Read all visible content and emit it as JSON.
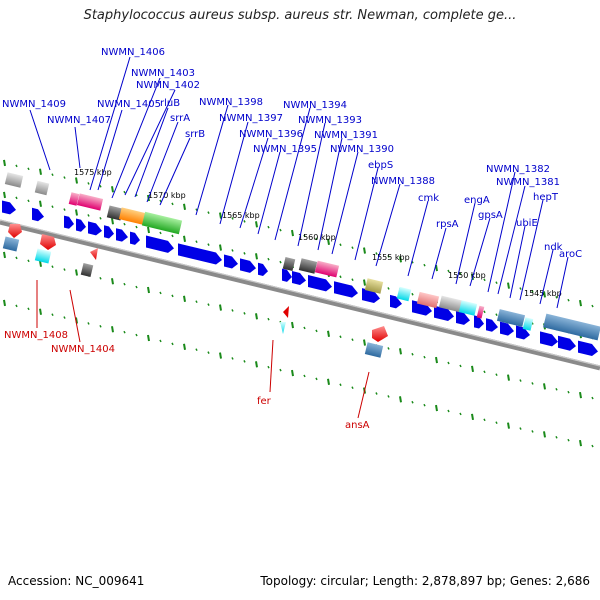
{
  "title": "Staphylococcus aureus subsp. aureus str. Newman, complete ge...",
  "footer": {
    "accession": "Accession: NC_009641",
    "topology": "Topology: circular; Length: 2,878,897 bp; Genes: 2,686"
  },
  "colors": {
    "forward_label": "#0000cc",
    "reverse_label": "#cc0000",
    "backbone": "#8a8a8a",
    "arrow": "#0000e6",
    "tick": "#1a8a1a"
  },
  "kbp_marks": [
    {
      "label": "1575 kbp",
      "pos": 1575
    },
    {
      "label": "1570 kbp",
      "pos": 1570
    },
    {
      "label": "1565 kbp",
      "pos": 1565
    },
    {
      "label": "1560 kbp",
      "pos": 1560
    },
    {
      "label": "1555 kbp",
      "pos": 1555
    },
    {
      "label": "1550 kbp",
      "pos": 1550
    },
    {
      "label": "1545 kbp",
      "pos": 1545
    }
  ],
  "forward_genes": [
    "NWMN_1409",
    "NWMN_1407",
    "NWMN_1406",
    "NWMN_1405",
    "NWMN_1403",
    "NWMN_1402",
    "rluB",
    "srrA",
    "srrB",
    "NWMN_1398",
    "NWMN_1397",
    "NWMN_1396",
    "NWMN_1395",
    "NWMN_1394",
    "NWMN_1393",
    "NWMN_1391",
    "NWMN_1390",
    "ebpS",
    "NWMN_1388",
    "cmk",
    "rpsA",
    "engA",
    "gpsA",
    "NWMN_1382",
    "NWMN_1381",
    "ubiE",
    "hepT",
    "ndk",
    "aroC"
  ],
  "reverse_genes": [
    "NWMN_1408",
    "NWMN_1404",
    "fer",
    "ansA"
  ]
}
